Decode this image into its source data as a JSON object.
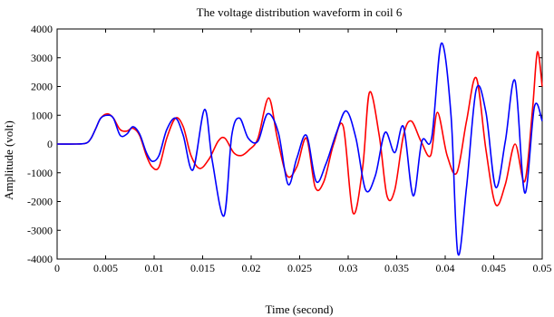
{
  "chart_data": {
    "type": "line",
    "title": "The voltage distribution waveform in coil 6",
    "xlabel": "Time (second)",
    "ylabel": "Amplitude (volt)",
    "xlim": [
      0,
      0.05
    ],
    "ylim": [
      -4000,
      4000
    ],
    "x_ticks": [
      0,
      0.005,
      0.01,
      0.015,
      0.02,
      0.025,
      0.03,
      0.035,
      0.04,
      0.045,
      0.05
    ],
    "x_tick_labels": [
      "0",
      "0.005",
      "0.01",
      "0.015",
      "0.02",
      "0.025",
      "0.03",
      "0.035",
      "0.04",
      "0.045",
      "0.05"
    ],
    "y_ticks": [
      -4000,
      -3000,
      -2000,
      -1000,
      0,
      1000,
      2000,
      3000,
      4000
    ],
    "y_tick_labels": [
      "-4000",
      "-3000",
      "-2000",
      "-1000",
      "0",
      "1000",
      "2000",
      "3000",
      "4000"
    ],
    "grid": false,
    "series": [
      {
        "color": "#ff0000",
        "x": [
          0,
          0.002,
          0.003,
          0.0035,
          0.004,
          0.0045,
          0.0052,
          0.0058,
          0.0065,
          0.0072,
          0.0078,
          0.0085,
          0.0092,
          0.0098,
          0.0105,
          0.0113,
          0.0122,
          0.013,
          0.0138,
          0.0147,
          0.0157,
          0.0166,
          0.0173,
          0.0182,
          0.019,
          0.0198,
          0.0207,
          0.0218,
          0.0227,
          0.0237,
          0.0247,
          0.0257,
          0.0266,
          0.0275,
          0.0285,
          0.0295,
          0.0305,
          0.0315,
          0.0322,
          0.0332,
          0.034,
          0.0348,
          0.0357,
          0.0365,
          0.0375,
          0.0385,
          0.0392,
          0.0402,
          0.0412,
          0.0422,
          0.0432,
          0.0442,
          0.0452,
          0.0462,
          0.0472,
          0.0482,
          0.049,
          0.0495,
          0.05
        ],
        "y": [
          0,
          0,
          30,
          200,
          550,
          900,
          1050,
          900,
          500,
          450,
          550,
          300,
          -400,
          -800,
          -800,
          200,
          900,
          600,
          -400,
          -850,
          -500,
          100,
          200,
          -300,
          -400,
          -200,
          200,
          1600,
          200,
          -1100,
          -800,
          200,
          -1500,
          -1300,
          0,
          600,
          -2400,
          -800,
          1800,
          300,
          -1800,
          -1600,
          300,
          800,
          100,
          -400,
          1100,
          -400,
          -1000,
          800,
          2300,
          -200,
          -2100,
          -1400,
          0,
          -1300,
          1200,
          3200,
          2000
        ]
      },
      {
        "color": "#0000ff",
        "x": [
          0,
          0.002,
          0.003,
          0.0035,
          0.004,
          0.0045,
          0.0052,
          0.0058,
          0.0065,
          0.0072,
          0.0078,
          0.0085,
          0.0092,
          0.0098,
          0.0105,
          0.0113,
          0.0122,
          0.013,
          0.014,
          0.0152,
          0.016,
          0.0172,
          0.018,
          0.0188,
          0.0197,
          0.0207,
          0.0217,
          0.0228,
          0.0238,
          0.0247,
          0.0257,
          0.0267,
          0.0277,
          0.0288,
          0.0298,
          0.0308,
          0.0318,
          0.0328,
          0.0338,
          0.0348,
          0.0357,
          0.0367,
          0.0376,
          0.0386,
          0.0396,
          0.0406,
          0.0413,
          0.0422,
          0.0432,
          0.0442,
          0.0452,
          0.0462,
          0.0472,
          0.0482,
          0.0492,
          0.05
        ],
        "y": [
          0,
          0,
          30,
          200,
          550,
          900,
          1000,
          900,
          300,
          350,
          600,
          350,
          -300,
          -600,
          -400,
          500,
          900,
          300,
          -900,
          1200,
          -600,
          -2500,
          300,
          900,
          200,
          100,
          1050,
          400,
          -1400,
          -500,
          300,
          -1300,
          -700,
          400,
          1150,
          200,
          -1600,
          -1100,
          400,
          -300,
          600,
          -1800,
          100,
          200,
          3500,
          1000,
          -3800,
          -1500,
          1900,
          1100,
          -1500,
          100,
          2200,
          -1700,
          1300,
          800
        ]
      }
    ]
  }
}
